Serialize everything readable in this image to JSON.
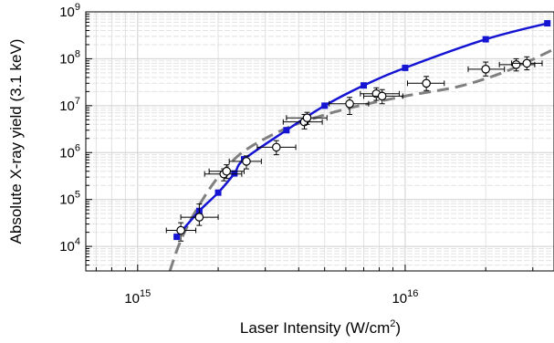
{
  "chart_data": {
    "type": "scatter",
    "xlabel": {
      "text": "Laser Intensity (W/cm",
      "sup": "2",
      "end": ")"
    },
    "ylabel": "Absolute X-ray yield (3.1 keV)",
    "x_scale": "log",
    "y_scale": "log",
    "xlim": [
      640000000000000.0,
      3.6e+16
    ],
    "ylim": [
      3000.0,
      1000000000.0
    ],
    "grid": true,
    "x_ticks": [
      {
        "value": 1000000000000000.0,
        "base": "10",
        "exp": "15"
      },
      {
        "value": 1e+16,
        "base": "10",
        "exp": "16"
      }
    ],
    "y_ticks": [
      {
        "value": 10000.0,
        "base": "10",
        "exp": "4"
      },
      {
        "value": 100000.0,
        "base": "10",
        "exp": "5"
      },
      {
        "value": 1000000.0,
        "base": "10",
        "exp": "6"
      },
      {
        "value": 10000000.0,
        "base": "10",
        "exp": "7"
      },
      {
        "value": 100000000.0,
        "base": "10",
        "exp": "8"
      },
      {
        "value": 1000000000.0,
        "base": "10",
        "exp": "9"
      }
    ],
    "series": [
      {
        "style": "blue solid line with square markers",
        "color": "#1414d2",
        "points": [
          [
            1400000000000000.0,
            16000.0
          ],
          [
            1700000000000000.0,
            57000.0
          ],
          [
            2000000000000000.0,
            140000.0
          ],
          [
            2300000000000000.0,
            360000.0
          ],
          [
            2500000000000000.0,
            720000.0
          ],
          [
            3600000000000000.0,
            3000000.0
          ],
          [
            5000000000000000.0,
            10000000.0
          ],
          [
            7000000000000000.0,
            27000000.0
          ],
          [
            1e+16,
            64000000.0
          ],
          [
            2e+16,
            260000000.0
          ],
          [
            3.4e+16,
            570000000.0
          ]
        ]
      },
      {
        "style": "gray dashed curve",
        "color": "#808080",
        "points": [
          [
            1320000000000000.0,
            3000.0
          ],
          [
            1420000000000000.0,
            10000.0
          ],
          [
            1550000000000000.0,
            30000.0
          ],
          [
            1750000000000000.0,
            100000.0
          ],
          [
            2000000000000000.0,
            300000.0
          ],
          [
            2400000000000000.0,
            900000.0
          ],
          [
            3000000000000000.0,
            2000000.0
          ],
          [
            4000000000000000.0,
            4200000.0
          ],
          [
            6000000000000000.0,
            8500000.0
          ],
          [
            1e+16,
            16000000.0
          ],
          [
            1.6e+16,
            26000000.0
          ],
          [
            2.4e+16,
            55000000.0
          ],
          [
            3.6e+16,
            160000000.0
          ]
        ]
      },
      {
        "style": "open circles with error bars",
        "points": [
          {
            "x": 1450000000000000.0,
            "y": 22000.0,
            "xerr": [
              1280000000000000.0,
              1650000000000000.0
            ],
            "yerr": [
              13000.0,
              32000.0
            ]
          },
          {
            "x": 1700000000000000.0,
            "y": 42000.0,
            "xerr": [
              1450000000000000.0,
              2000000000000000.0
            ],
            "yerr": [
              28000.0,
              80000.0
            ]
          },
          {
            "x": 2100000000000000.0,
            "y": 350000.0,
            "xerr": [
              1780000000000000.0,
              2450000000000000.0
            ],
            "yerr": [
              250000.0,
              450000.0
            ]
          },
          {
            "x": 2150000000000000.0,
            "y": 400000.0,
            "xerr": [
              1850000000000000.0,
              2500000000000000.0
            ],
            "yerr": [
              280000.0,
              550000.0
            ]
          },
          {
            "x": 2550000000000000.0,
            "y": 650000.0,
            "xerr": [
              2200000000000000.0,
              2900000000000000.0
            ],
            "yerr": [
              450000.0,
              850000.0
            ]
          },
          {
            "x": 3300000000000000.0,
            "y": 1300000.0,
            "xerr": [
              2800000000000000.0,
              3900000000000000.0
            ],
            "yerr": [
              900000.0,
              1800000.0
            ]
          },
          {
            "x": 4200000000000000.0,
            "y": 4500000.0,
            "xerr": [
              3500000000000000.0,
              4900000000000000.0
            ],
            "yerr": [
              3200000.0,
              6500000.0
            ]
          },
          {
            "x": 4300000000000000.0,
            "y": 5500000.0,
            "xerr": [
              3600000000000000.0,
              5100000000000000.0
            ],
            "yerr": [
              4000000.0,
              7200000.0
            ]
          },
          {
            "x": 6200000000000000.0,
            "y": 11000000.0,
            "xerr": [
              5200000000000000.0,
              7300000000000000.0
            ],
            "yerr": [
              6500000.0,
              15000000.0
            ]
          },
          {
            "x": 7800000000000000.0,
            "y": 18000000.0,
            "xerr": [
              6800000000000000.0,
              9500000000000000.0
            ],
            "yerr": [
              13000000.0,
              24000000.0
            ]
          },
          {
            "x": 8200000000000000.0,
            "y": 16000000.0,
            "xerr": [
              7000000000000000.0,
              9800000000000000.0
            ],
            "yerr": [
              11000000.0,
              22000000.0
            ]
          },
          {
            "x": 1.2e+16,
            "y": 30000000.0,
            "xerr": [
              1.02e+16,
              1.4e+16
            ],
            "yerr": [
              21000000.0,
              42000000.0
            ]
          },
          {
            "x": 2e+16,
            "y": 60000000.0,
            "xerr": [
              1.72e+16,
              2.35e+16
            ],
            "yerr": [
              43000000.0,
              85000000.0
            ]
          },
          {
            "x": 2.6e+16,
            "y": 75000000.0,
            "xerr": [
              2.25e+16,
              3.05e+16
            ],
            "yerr": [
              55000000.0,
              100000000.0
            ]
          },
          {
            "x": 2.85e+16,
            "y": 80000000.0,
            "xerr": [
              2.5e+16,
              3.25e+16
            ],
            "yerr": [
              58000000.0,
              110000000.0
            ]
          }
        ]
      }
    ]
  }
}
